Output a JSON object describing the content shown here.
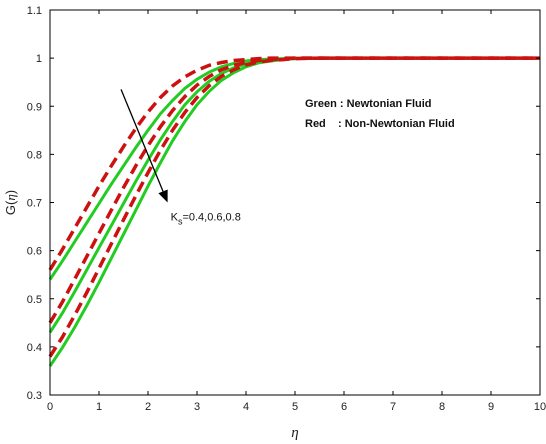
{
  "chart_data": {
    "type": "line",
    "title": "",
    "xlabel": "η",
    "ylabel_prefix": "G(",
    "ylabel_symbol": "η",
    "ylabel_suffix": ")",
    "xlim": [
      0,
      10
    ],
    "ylim": [
      0.3,
      1.1
    ],
    "xticks": [
      "0",
      "1",
      "2",
      "3",
      "4",
      "5",
      "6",
      "7",
      "8",
      "9",
      "10"
    ],
    "yticks": [
      "0.3",
      "0.4",
      "0.5",
      "0.6",
      "0.7",
      "0.8",
      "0.9",
      "1",
      "1.1"
    ],
    "grid": false,
    "legend_placement": "center-right",
    "legend": [
      {
        "label": "Green : Newtonian Fluid",
        "color": "#22cc22"
      },
      {
        "label": "Red    : Non-Newtonian Fluid",
        "color": "#cc1111"
      }
    ],
    "annotation": {
      "k_label": "K",
      "k_subscript": "s",
      "values_text": "=0.4,0.6,0.8",
      "arrow_from": {
        "x": 1.45,
        "y": 0.935
      },
      "arrow_to": {
        "x": 2.4,
        "y": 0.7
      }
    },
    "x": [
      0,
      0.25,
      0.5,
      0.75,
      1,
      1.25,
      1.5,
      1.75,
      2,
      2.25,
      2.5,
      2.75,
      3,
      3.25,
      3.5,
      3.75,
      4,
      4.25,
      4.5,
      4.75,
      5,
      5.5,
      6,
      6.5,
      7,
      7.5,
      8,
      8.5,
      9,
      9.5,
      10
    ],
    "series": [
      {
        "group": "Green",
        "color": "#22cc22",
        "style": "solid",
        "values": [
          0.54,
          0.578,
          0.618,
          0.658,
          0.698,
          0.738,
          0.776,
          0.814,
          0.85,
          0.884,
          0.912,
          0.937,
          0.956,
          0.971,
          0.982,
          0.989,
          0.994,
          0.997,
          0.998,
          0.999,
          1,
          1,
          1,
          1,
          1,
          1,
          1,
          1,
          1,
          1,
          1
        ]
      },
      {
        "group": "Green",
        "color": "#22cc22",
        "style": "solid",
        "values": [
          0.43,
          0.47,
          0.514,
          0.56,
          0.606,
          0.652,
          0.698,
          0.744,
          0.788,
          0.83,
          0.868,
          0.903,
          0.93,
          0.952,
          0.968,
          0.98,
          0.988,
          0.993,
          0.996,
          0.998,
          0.999,
          1,
          1,
          1,
          1,
          1,
          1,
          1,
          1,
          1,
          1
        ]
      },
      {
        "group": "Green",
        "color": "#22cc22",
        "style": "solid",
        "values": [
          0.36,
          0.398,
          0.44,
          0.486,
          0.534,
          0.584,
          0.634,
          0.684,
          0.734,
          0.782,
          0.828,
          0.868,
          0.903,
          0.931,
          0.954,
          0.97,
          0.982,
          0.99,
          0.994,
          0.997,
          0.999,
          1,
          1,
          1,
          1,
          1,
          1,
          1,
          1,
          1,
          1
        ]
      },
      {
        "group": "Red",
        "color": "#cc1111",
        "style": "dashed",
        "values": [
          0.56,
          0.602,
          0.646,
          0.69,
          0.734,
          0.776,
          0.816,
          0.854,
          0.888,
          0.918,
          0.942,
          0.961,
          0.975,
          0.985,
          0.991,
          0.995,
          0.997,
          0.999,
          1,
          1,
          1,
          1,
          1,
          1,
          1,
          1,
          1,
          1,
          1,
          1,
          1
        ]
      },
      {
        "group": "Red",
        "color": "#cc1111",
        "style": "dashed",
        "values": [
          0.45,
          0.493,
          0.54,
          0.588,
          0.636,
          0.684,
          0.731,
          0.776,
          0.818,
          0.857,
          0.891,
          0.92,
          0.944,
          0.962,
          0.976,
          0.985,
          0.991,
          0.995,
          0.997,
          0.999,
          1,
          1,
          1,
          1,
          1,
          1,
          1,
          1,
          1,
          1,
          1
        ]
      },
      {
        "group": "Red",
        "color": "#cc1111",
        "style": "dashed",
        "values": [
          0.38,
          0.42,
          0.465,
          0.513,
          0.563,
          0.614,
          0.664,
          0.714,
          0.762,
          0.808,
          0.85,
          0.887,
          0.918,
          0.943,
          0.962,
          0.976,
          0.986,
          0.992,
          0.995,
          0.997,
          0.999,
          1,
          1,
          1,
          1,
          1,
          1,
          1,
          1,
          1,
          1
        ]
      }
    ]
  }
}
